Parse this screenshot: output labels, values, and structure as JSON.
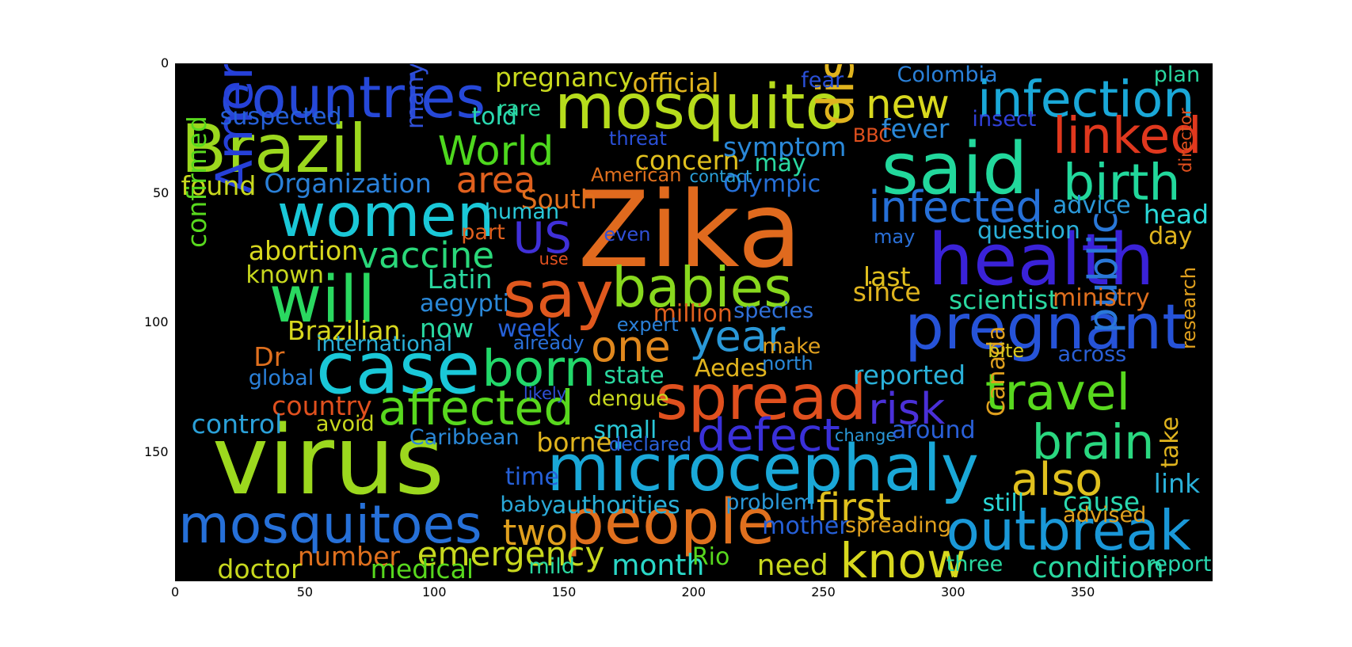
{
  "axes": {
    "x_ticks": [
      {
        "label": "0",
        "value": 0
      },
      {
        "label": "50",
        "value": 50
      },
      {
        "label": "100",
        "value": 100
      },
      {
        "label": "150",
        "value": 150
      },
      {
        "label": "200",
        "value": 200
      },
      {
        "label": "250",
        "value": 250
      },
      {
        "label": "300",
        "value": 300
      },
      {
        "label": "350",
        "value": 350
      }
    ],
    "y_ticks": [
      {
        "label": "0",
        "value": 0
      },
      {
        "label": "50",
        "value": 50
      },
      {
        "label": "100",
        "value": 100
      },
      {
        "label": "150",
        "value": 150
      }
    ],
    "x_range": [
      0,
      400
    ],
    "y_range": [
      0,
      200
    ]
  },
  "background_color": "#000000",
  "words": [
    {
      "text": "Zika",
      "x": 155,
      "y": 44,
      "size": 44,
      "color": "#e06a1e"
    },
    {
      "text": "virus",
      "x": 14,
      "y": 135,
      "size": 40,
      "color": "#9cd81e"
    },
    {
      "text": "health",
      "x": 290,
      "y": 62,
      "size": 30,
      "color": "#3a22d8"
    },
    {
      "text": "mosquito",
      "x": 146,
      "y": 5,
      "size": 26,
      "color": "#b6dc1c"
    },
    {
      "text": "said",
      "x": 272,
      "y": 27,
      "size": 30,
      "color": "#22d89c"
    },
    {
      "text": "microcephaly",
      "x": 143,
      "y": 144,
      "size": 27,
      "color": "#1aa8d8"
    },
    {
      "text": "pregnant",
      "x": 281,
      "y": 90,
      "size": 26,
      "color": "#2653d8"
    },
    {
      "text": "Brazil",
      "x": 2,
      "y": 20,
      "size": 28,
      "color": "#9cd81e"
    },
    {
      "text": "countries",
      "x": 17,
      "y": 2,
      "size": 24,
      "color": "#2648d8"
    },
    {
      "text": "women",
      "x": 39,
      "y": 47,
      "size": 25,
      "color": "#1ac8d8"
    },
    {
      "text": "case",
      "x": 54,
      "y": 104,
      "size": 30,
      "color": "#1ac8d8"
    },
    {
      "text": "spread",
      "x": 185,
      "y": 117,
      "size": 26,
      "color": "#e0501e"
    },
    {
      "text": "people",
      "x": 150,
      "y": 165,
      "size": 26,
      "color": "#e0701e"
    },
    {
      "text": "mosquitoes",
      "x": 1,
      "y": 168,
      "size": 22,
      "color": "#2670d8"
    },
    {
      "text": "outbreak",
      "x": 297,
      "y": 170,
      "size": 23,
      "color": "#1a98d8"
    },
    {
      "text": "say",
      "x": 126,
      "y": 77,
      "size": 27,
      "color": "#e0581e"
    },
    {
      "text": "babies",
      "x": 168,
      "y": 76,
      "size": 23,
      "color": "#88d81e"
    },
    {
      "text": "will",
      "x": 36,
      "y": 79,
      "size": 27,
      "color": "#2ad860"
    },
    {
      "text": "infection",
      "x": 309,
      "y": 4,
      "size": 21,
      "color": "#1aa8d8"
    },
    {
      "text": "birth",
      "x": 342,
      "y": 36,
      "size": 21,
      "color": "#22d89c"
    },
    {
      "text": "infected",
      "x": 267,
      "y": 47,
      "size": 18,
      "color": "#2670d8"
    },
    {
      "text": "linked",
      "x": 338,
      "y": 18,
      "size": 21,
      "color": "#e0381e"
    },
    {
      "text": "disease",
      "x": 245,
      "y": 24,
      "size": 21,
      "color": "#e0b41e",
      "rotate": -90
    },
    {
      "text": "America",
      "x": 13,
      "y": 50,
      "size": 21,
      "color": "#2640d8",
      "rotate": -90
    },
    {
      "text": "born",
      "x": 118,
      "y": 108,
      "size": 21,
      "color": "#22d86a"
    },
    {
      "text": "affected",
      "x": 78,
      "y": 124,
      "size": 20,
      "color": "#58d81e"
    },
    {
      "text": "year",
      "x": 198,
      "y": 97,
      "size": 18,
      "color": "#2a98d8"
    },
    {
      "text": "one",
      "x": 160,
      "y": 101,
      "size": 18,
      "color": "#e0881e"
    },
    {
      "text": "travel",
      "x": 312,
      "y": 117,
      "size": 21,
      "color": "#58d81e"
    },
    {
      "text": "brain",
      "x": 330,
      "y": 137,
      "size": 20,
      "color": "#2ad880"
    },
    {
      "text": "also",
      "x": 322,
      "y": 152,
      "size": 19,
      "color": "#e0c01e"
    },
    {
      "text": "defect",
      "x": 201,
      "y": 135,
      "size": 19,
      "color": "#3a30d8"
    },
    {
      "text": "risk",
      "x": 267,
      "y": 125,
      "size": 18,
      "color": "#4a30d8"
    },
    {
      "text": "know",
      "x": 256,
      "y": 183,
      "size": 20,
      "color": "#d8d81e"
    },
    {
      "text": "first",
      "x": 247,
      "y": 164,
      "size": 16,
      "color": "#e0c01e"
    },
    {
      "text": "US",
      "x": 130,
      "y": 59,
      "size": 18,
      "color": "#4030d8"
    },
    {
      "text": "World",
      "x": 101,
      "y": 26,
      "size": 17,
      "color": "#4ed81e"
    },
    {
      "text": "new",
      "x": 266,
      "y": 8,
      "size": 17,
      "color": "#d8d81e"
    },
    {
      "text": "public",
      "x": 350,
      "y": 104,
      "size": 17,
      "color": "#2a78d8",
      "rotate": -90
    },
    {
      "text": "vaccine",
      "x": 70,
      "y": 67,
      "size": 15,
      "color": "#2ad87a"
    },
    {
      "text": "two",
      "x": 126,
      "y": 174,
      "size": 15,
      "color": "#e0a01e"
    },
    {
      "text": "area",
      "x": 108,
      "y": 38,
      "size": 15,
      "color": "#e0601e"
    },
    {
      "text": "emergency",
      "x": 93,
      "y": 183,
      "size": 14,
      "color": "#c8d81e"
    },
    {
      "text": "pregnancy",
      "x": 123,
      "y": 0,
      "size": 11,
      "color": "#c8d81e"
    },
    {
      "text": "official",
      "x": 176,
      "y": 2,
      "size": 11,
      "color": "#e0b41e"
    },
    {
      "text": "concern",
      "x": 177,
      "y": 32,
      "size": 11,
      "color": "#e0c01e"
    },
    {
      "text": "symptom",
      "x": 211,
      "y": 27,
      "size": 11,
      "color": "#2a88d8"
    },
    {
      "text": "Organization",
      "x": 34,
      "y": 41,
      "size": 11,
      "color": "#2a80d8"
    },
    {
      "text": "found",
      "x": 2,
      "y": 42,
      "size": 11,
      "color": "#c8d81e"
    },
    {
      "text": "suspected",
      "x": 17,
      "y": 16,
      "size": 10,
      "color": "#2660d8"
    },
    {
      "text": "told",
      "x": 114,
      "y": 16,
      "size": 10,
      "color": "#2ad8b0"
    },
    {
      "text": "many",
      "x": 88,
      "y": 25,
      "size": 10,
      "color": "#3050d8",
      "rotate": -90
    },
    {
      "text": "South",
      "x": 133,
      "y": 47,
      "size": 11,
      "color": "#e0701e"
    },
    {
      "text": "Olympic",
      "x": 211,
      "y": 42,
      "size": 10,
      "color": "#2670d8"
    },
    {
      "text": "may",
      "x": 223,
      "y": 34,
      "size": 10,
      "color": "#2ad8a0"
    },
    {
      "text": "fever",
      "x": 272,
      "y": 20,
      "size": 11,
      "color": "#2a88d8"
    },
    {
      "text": "advice",
      "x": 338,
      "y": 50,
      "size": 10,
      "color": "#2a98d8"
    },
    {
      "text": "head",
      "x": 373,
      "y": 53,
      "size": 11,
      "color": "#2ad8d8"
    },
    {
      "text": "question",
      "x": 309,
      "y": 60,
      "size": 10,
      "color": "#2ab0d8"
    },
    {
      "text": "day",
      "x": 375,
      "y": 62,
      "size": 10,
      "color": "#e0b41e"
    },
    {
      "text": "last",
      "x": 265,
      "y": 77,
      "size": 11,
      "color": "#e0c01e"
    },
    {
      "text": "since",
      "x": 261,
      "y": 83,
      "size": 11,
      "color": "#e0b41e"
    },
    {
      "text": "scientist",
      "x": 298,
      "y": 86,
      "size": 11,
      "color": "#2ad8a0"
    },
    {
      "text": "ministry",
      "x": 338,
      "y": 86,
      "size": 10,
      "color": "#e0701e"
    },
    {
      "text": "abortion",
      "x": 28,
      "y": 67,
      "size": 11,
      "color": "#d8d81e"
    },
    {
      "text": "Latin",
      "x": 97,
      "y": 78,
      "size": 11,
      "color": "#2ad8a0"
    },
    {
      "text": "known",
      "x": 27,
      "y": 77,
      "size": 10,
      "color": "#c8d81e"
    },
    {
      "text": "human",
      "x": 119,
      "y": 53,
      "size": 9,
      "color": "#2ac8d8"
    },
    {
      "text": "part",
      "x": 110,
      "y": 61,
      "size": 9,
      "color": "#e0601e"
    },
    {
      "text": "aegypti",
      "x": 94,
      "y": 88,
      "size": 10,
      "color": "#2a88d8"
    },
    {
      "text": "million",
      "x": 184,
      "y": 92,
      "size": 10,
      "color": "#e0601e"
    },
    {
      "text": "species",
      "x": 215,
      "y": 91,
      "size": 9,
      "color": "#3070d8"
    },
    {
      "text": "Brazilian",
      "x": 43,
      "y": 98,
      "size": 11,
      "color": "#d8d81e"
    },
    {
      "text": "now",
      "x": 94,
      "y": 97,
      "size": 11,
      "color": "#2ad8a0"
    },
    {
      "text": "week",
      "x": 124,
      "y": 98,
      "size": 10,
      "color": "#2660d8"
    },
    {
      "text": "international",
      "x": 54,
      "y": 104,
      "size": 9,
      "color": "#2ab0d8"
    },
    {
      "text": "Dr",
      "x": 30,
      "y": 108,
      "size": 11,
      "color": "#e0701e"
    },
    {
      "text": "global",
      "x": 28,
      "y": 117,
      "size": 9,
      "color": "#2a80d8"
    },
    {
      "text": "Aedes",
      "x": 200,
      "y": 113,
      "size": 10,
      "color": "#e0b41e"
    },
    {
      "text": "state",
      "x": 165,
      "y": 116,
      "size": 10,
      "color": "#2ad8a0"
    },
    {
      "text": "reported",
      "x": 261,
      "y": 115,
      "size": 11,
      "color": "#2ab0d8"
    },
    {
      "text": "confirmed",
      "x": 3,
      "y": 71,
      "size": 11,
      "color": "#58d81e",
      "rotate": -90
    },
    {
      "text": "country",
      "x": 37,
      "y": 127,
      "size": 11,
      "color": "#e0501e"
    },
    {
      "text": "control",
      "x": 6,
      "y": 134,
      "size": 11,
      "color": "#2aa0d8"
    },
    {
      "text": "avoid",
      "x": 54,
      "y": 135,
      "size": 9,
      "color": "#c8d81e"
    },
    {
      "text": "dengue",
      "x": 159,
      "y": 125,
      "size": 9,
      "color": "#c8d81e"
    },
    {
      "text": "small",
      "x": 161,
      "y": 137,
      "size": 10,
      "color": "#2ac8d8"
    },
    {
      "text": "borne",
      "x": 139,
      "y": 141,
      "size": 11,
      "color": "#e0b41e"
    },
    {
      "text": "Caribbean",
      "x": 90,
      "y": 140,
      "size": 9,
      "color": "#2a88d8"
    },
    {
      "text": "Canada",
      "x": 312,
      "y": 136,
      "size": 10,
      "color": "#e0a01e",
      "rotate": -90
    },
    {
      "text": "take",
      "x": 379,
      "y": 156,
      "size": 10,
      "color": "#e0b41e",
      "rotate": -90
    },
    {
      "text": "time",
      "x": 127,
      "y": 155,
      "size": 10,
      "color": "#2660d8"
    },
    {
      "text": "baby",
      "x": 125,
      "y": 166,
      "size": 9,
      "color": "#2aa8d8"
    },
    {
      "text": "authorities",
      "x": 145,
      "y": 166,
      "size": 10,
      "color": "#2ab0d8"
    },
    {
      "text": "problem",
      "x": 212,
      "y": 165,
      "size": 9,
      "color": "#2a98d8"
    },
    {
      "text": "link",
      "x": 377,
      "y": 157,
      "size": 11,
      "color": "#2ab0d8"
    },
    {
      "text": "cause",
      "x": 342,
      "y": 164,
      "size": 11,
      "color": "#2ad8b0"
    },
    {
      "text": "still",
      "x": 311,
      "y": 165,
      "size": 10,
      "color": "#2ad8d8"
    },
    {
      "text": "advised",
      "x": 342,
      "y": 170,
      "size": 9,
      "color": "#e0a01e"
    },
    {
      "text": "mother",
      "x": 226,
      "y": 174,
      "size": 10,
      "color": "#2660d8"
    },
    {
      "text": "spreading",
      "x": 258,
      "y": 174,
      "size": 9,
      "color": "#e0a01e"
    },
    {
      "text": "number",
      "x": 47,
      "y": 185,
      "size": 11,
      "color": "#e0701e"
    },
    {
      "text": "doctor",
      "x": 16,
      "y": 190,
      "size": 11,
      "color": "#c8d81e"
    },
    {
      "text": "medical",
      "x": 75,
      "y": 190,
      "size": 11,
      "color": "#58d81e"
    },
    {
      "text": "mild",
      "x": 136,
      "y": 190,
      "size": 9,
      "color": "#2ad8a0"
    },
    {
      "text": "month",
      "x": 168,
      "y": 188,
      "size": 12,
      "color": "#2ad8c8"
    },
    {
      "text": "Rio",
      "x": 199,
      "y": 186,
      "size": 10,
      "color": "#58d81e"
    },
    {
      "text": "need",
      "x": 224,
      "y": 188,
      "size": 12,
      "color": "#c8d81e"
    },
    {
      "text": "three",
      "x": 297,
      "y": 189,
      "size": 9,
      "color": "#2ad8a0"
    },
    {
      "text": "condition",
      "x": 330,
      "y": 189,
      "size": 12,
      "color": "#2ad8a0"
    },
    {
      "text": "report",
      "x": 374,
      "y": 189,
      "size": 9,
      "color": "#2ad8b0"
    },
    {
      "text": "Colombia",
      "x": 278,
      "y": 0,
      "size": 9,
      "color": "#2a80d8"
    },
    {
      "text": "plan",
      "x": 377,
      "y": 0,
      "size": 9,
      "color": "#2ad8a0"
    },
    {
      "text": "fear",
      "x": 241,
      "y": 2,
      "size": 9,
      "color": "#2a50d8"
    },
    {
      "text": "rare",
      "x": 124,
      "y": 13,
      "size": 9,
      "color": "#2ad8a0"
    },
    {
      "text": "insect",
      "x": 307,
      "y": 17,
      "size": 9,
      "color": "#3040d8"
    },
    {
      "text": "threat",
      "x": 167,
      "y": 25,
      "size": 8,
      "color": "#2a50d8"
    },
    {
      "text": "American",
      "x": 160,
      "y": 39,
      "size": 8,
      "color": "#e0701e"
    },
    {
      "text": "contact",
      "x": 198,
      "y": 40,
      "size": 7,
      "color": "#2aa0d8"
    },
    {
      "text": "expert",
      "x": 170,
      "y": 97,
      "size": 8,
      "color": "#2a80d8"
    },
    {
      "text": "make",
      "x": 226,
      "y": 105,
      "size": 9,
      "color": "#e0a01e"
    },
    {
      "text": "north",
      "x": 226,
      "y": 112,
      "size": 8,
      "color": "#2a88d8"
    },
    {
      "text": "already",
      "x": 130,
      "y": 104,
      "size": 8,
      "color": "#2a70d8"
    },
    {
      "text": "likely",
      "x": 134,
      "y": 124,
      "size": 7,
      "color": "#3050d8"
    },
    {
      "text": "declared",
      "x": 167,
      "y": 143,
      "size": 8,
      "color": "#2a60d8"
    },
    {
      "text": "change",
      "x": 254,
      "y": 140,
      "size": 7,
      "color": "#2a98d8"
    },
    {
      "text": "around",
      "x": 276,
      "y": 137,
      "size": 10,
      "color": "#2a60d8"
    },
    {
      "text": "across",
      "x": 340,
      "y": 108,
      "size": 9,
      "color": "#2a60d8"
    },
    {
      "text": "bite",
      "x": 313,
      "y": 107,
      "size": 8,
      "color": "#d8c81e"
    },
    {
      "text": "research",
      "x": 387,
      "y": 110,
      "size": 8,
      "color": "#e0a01e",
      "rotate": -90
    },
    {
      "text": "even",
      "x": 165,
      "y": 62,
      "size": 8,
      "color": "#3050d8"
    },
    {
      "text": "use",
      "x": 140,
      "y": 72,
      "size": 7,
      "color": "#e0501e"
    },
    {
      "text": "may",
      "x": 269,
      "y": 63,
      "size": 8,
      "color": "#2a70d8"
    },
    {
      "text": "director",
      "x": 386,
      "y": 42,
      "size": 7,
      "color": "#e0501e",
      "rotate": -90
    },
    {
      "text": "BBC",
      "x": 261,
      "y": 24,
      "size": 8,
      "color": "#e0501e"
    }
  ]
}
